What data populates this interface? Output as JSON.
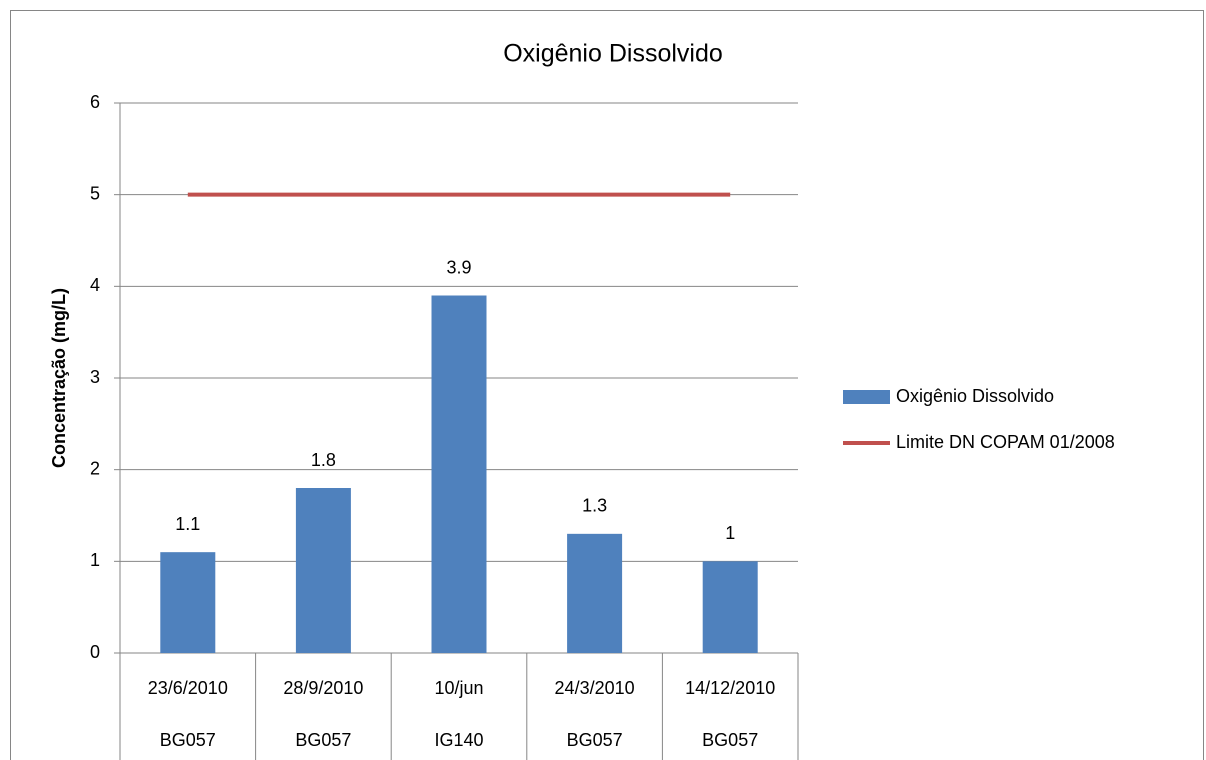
{
  "chart_data": {
    "type": "bar",
    "title": "Oxigênio Dissolvido",
    "y_label": "Concentração (mg/L)",
    "categories": [
      "23/6/2010",
      "28/9/2010",
      "10/jun",
      "24/3/2010",
      "14/12/2010"
    ],
    "stations": [
      "BG057",
      "BG057",
      "IG140",
      "BG057",
      "BG057"
    ],
    "series": [
      {
        "name": "Oxigênio Dissolvido",
        "type": "bar",
        "color": "#4f81bd",
        "values": [
          1.1,
          1.8,
          3.9,
          1.3,
          1
        ],
        "data_labels": true
      },
      {
        "name": "Limite DN COPAM 01/2008",
        "type": "line",
        "color": "#c0504d",
        "values": [
          5,
          5,
          5,
          5,
          5
        ],
        "data_labels": false
      }
    ],
    "ylim": [
      0,
      6
    ],
    "yticks": [
      0,
      1,
      2,
      3,
      4,
      5,
      6
    ],
    "grid": true,
    "legend": "right"
  }
}
